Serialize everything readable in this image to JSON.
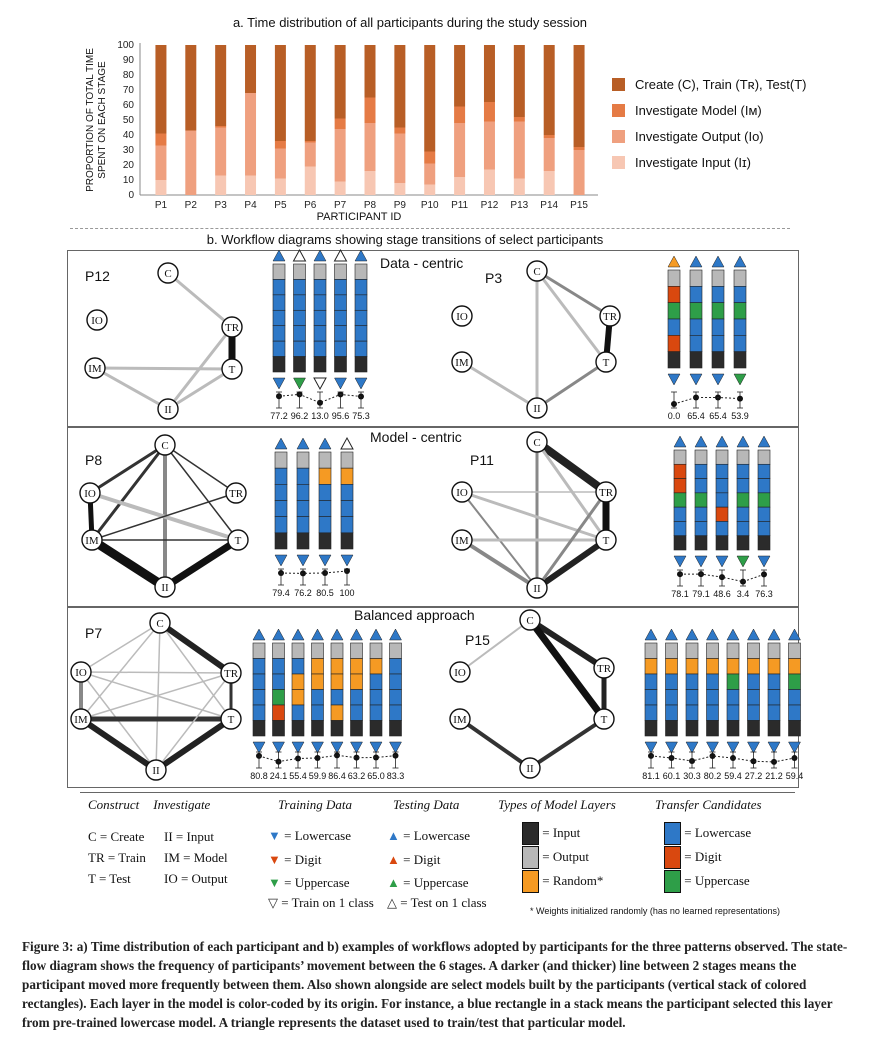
{
  "chart_data": {
    "type": "bar",
    "title": "a. Time distribution of all participants during the study session",
    "ylabel_line1": "PROPORTION OF TOTAL TIME",
    "ylabel_line2": "SPENT ON EACH STAGE",
    "xlabel": "PARTICIPANT ID",
    "ylim": [
      0,
      100
    ],
    "yticks": [
      0,
      10,
      20,
      30,
      40,
      50,
      60,
      70,
      80,
      90,
      100
    ],
    "categories": [
      "P1",
      "P2",
      "P3",
      "P4",
      "P5",
      "P6",
      "P7",
      "P8",
      "P9",
      "P10",
      "P11",
      "P12",
      "P13",
      "P14",
      "P15"
    ],
    "stacked": true,
    "series": [
      {
        "name": "Investigate Input (II)",
        "color": "#f7c7b3",
        "values": [
          10,
          0,
          13,
          13,
          11,
          19,
          9,
          16,
          8,
          7,
          12,
          17,
          11,
          16,
          0
        ]
      },
      {
        "name": "Investigate Output (IO)",
        "color": "#efa07f",
        "values": [
          23,
          43,
          32,
          55,
          20,
          16,
          35,
          32,
          33,
          14,
          36,
          32,
          38,
          22,
          30
        ]
      },
      {
        "name": "Investigate Model (IM)",
        "color": "#e57b45",
        "values": [
          8,
          0,
          1,
          0,
          5,
          1,
          7,
          17,
          4,
          8,
          11,
          13,
          3,
          2,
          2
        ]
      },
      {
        "name": "Create (C), Train (TR), Test(T)",
        "color": "#b85e26",
        "values": [
          59,
          57,
          54,
          32,
          64,
          64,
          49,
          35,
          55,
          71,
          41,
          38,
          48,
          60,
          68
        ]
      }
    ],
    "legend_order": [
      "Create (C), Train (Tʀ), Test(T)",
      "Investigate Model (Iᴍ)",
      "Investigate Output (Iᴏ)",
      "Investigate Input (Iɪ)"
    ]
  },
  "section_b_title": "b. Workflow diagrams showing stage transitions of select participants",
  "patterns": {
    "data_centric": "Data - centric",
    "model_centric": "Model - centric",
    "balanced": "Balanced approach"
  },
  "diagrams": [
    {
      "participant": "P12",
      "accuracies": [
        "77.2",
        "96.2",
        "13.0",
        "95.6",
        "75.3"
      ]
    },
    {
      "participant": "P3",
      "accuracies": [
        "0.0",
        "65.4",
        "65.4",
        "53.9"
      ]
    },
    {
      "participant": "P8",
      "accuracies": [
        "79.4",
        "76.2",
        "80.5",
        "100"
      ]
    },
    {
      "participant": "P11",
      "accuracies": [
        "78.1",
        "79.1",
        "48.6",
        "3.4",
        "76.3"
      ]
    },
    {
      "participant": "P7",
      "accuracies": [
        "80.8",
        "24.1",
        "55.4",
        "59.9",
        "86.4",
        "63.2",
        "65.0",
        "83.3"
      ]
    },
    {
      "participant": "P15",
      "accuracies": [
        "81.1",
        "60.1",
        "30.3",
        "80.2",
        "59.4",
        "27.2",
        "21.2",
        "59.4"
      ]
    }
  ],
  "node_labels": {
    "c": "C",
    "tr": "TR",
    "t": "T",
    "ii": "II",
    "im": "IM",
    "io": "IO"
  },
  "legend": {
    "construct": "Construct",
    "investigate": "Investigate",
    "c_def": "C = Create",
    "tr_def": "TR = Train",
    "t_def": "T = Test",
    "ii_def": "II  = Input",
    "im_def": "IM = Model",
    "io_def": "IO = Output",
    "training_data": "Training Data",
    "testing_data": "Testing Data",
    "types_layers": "Types of Model Layers",
    "transfer": "Transfer Candidates",
    "tr_lower": "= Lowercase",
    "tr_digit": "= Digit",
    "tr_upper": "= Uppercase",
    "tr_one": "= Train on 1 class",
    "te_lower": "= Lowercase",
    "te_digit": "= Digit",
    "te_upper": "= Uppercase",
    "te_one": "= Test on 1 class",
    "l_input": "= Input",
    "l_output": "= Output",
    "l_random": "= Random*",
    "t_lower": "= Lowercase",
    "t_digit": "= Digit",
    "t_upper": "= Uppercase",
    "footnote": "* Weights initialized randomly (has no learned representations)"
  },
  "colors": {
    "lowercase": "#2e78c7",
    "digit": "#d9480f",
    "uppercase": "#2e9e48",
    "input_layer": "#2b2b2b",
    "output_layer": "#b8b8b8",
    "random_layer": "#f59a23"
  },
  "caption": "Figure 3: a) Time distribution of each participant and b) examples of workflows adopted by participants for the three patterns observed. The state-flow diagram shows the frequency of participants’ movement between the 6 stages. A darker (and thicker) line between 2 stages means the participant moved more frequently between them. Also shown alongside are select models built by the participants (vertical stack of colored rectangles). Each layer in the model is color-coded by its origin. For instance, a blue rectangle in a stack means the participant selected this layer from pre-trained lowercase model. A triangle represents the dataset used to train/test that particular model."
}
